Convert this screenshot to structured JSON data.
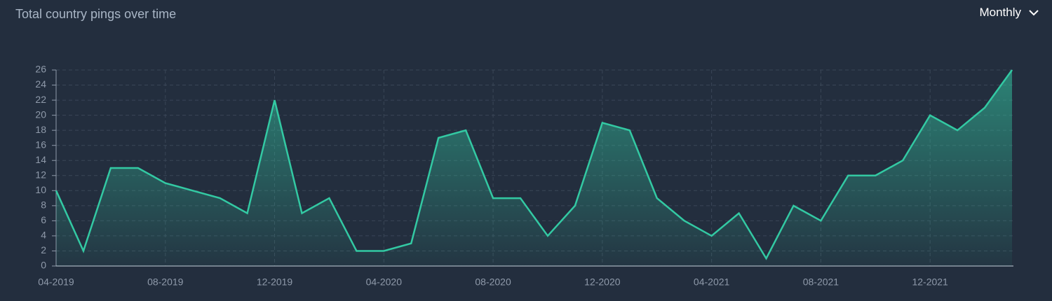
{
  "chart_data": {
    "type": "area",
    "title": "Total country pings over time",
    "categories": [
      "04-2019",
      null,
      null,
      null,
      "08-2019",
      null,
      null,
      null,
      "12-2019",
      null,
      null,
      null,
      "04-2020",
      null,
      null,
      null,
      "08-2020",
      null,
      null,
      null,
      "12-2020",
      null,
      null,
      null,
      "04-2021",
      null,
      null,
      null,
      "08-2021",
      null,
      null,
      null,
      "12-2021",
      null,
      null,
      null
    ],
    "values": [
      10,
      2,
      13,
      13,
      11,
      10,
      9,
      7,
      22,
      7,
      9,
      2,
      2,
      3,
      17,
      18,
      9,
      9,
      4,
      8,
      19,
      18,
      9,
      6,
      4,
      7,
      1,
      8,
      6,
      12,
      12,
      14,
      20,
      18,
      21,
      26
    ],
    "color": "#33c9a3",
    "ylim": [
      0,
      26
    ],
    "yticks": [
      0,
      2,
      4,
      6,
      8,
      10,
      12,
      14,
      16,
      18,
      20,
      22,
      24,
      26
    ],
    "grid": true
  },
  "controls": {
    "period": "Monthly"
  }
}
